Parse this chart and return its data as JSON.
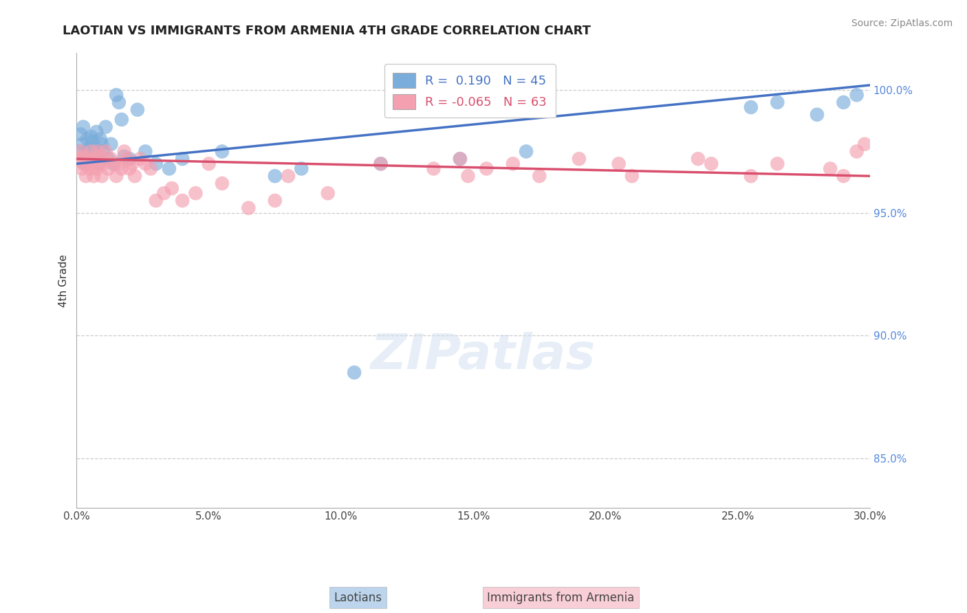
{
  "title": "LAOTIAN VS IMMIGRANTS FROM ARMENIA 4TH GRADE CORRELATION CHART",
  "source": "Source: ZipAtlas.com",
  "ylabel": "4th Grade",
  "xlim": [
    0.0,
    30.0
  ],
  "ylim": [
    83.0,
    101.5
  ],
  "xticks": [
    0.0,
    5.0,
    10.0,
    15.0,
    20.0,
    25.0,
    30.0
  ],
  "yticks": [
    85.0,
    90.0,
    95.0,
    100.0
  ],
  "blue_R": 0.19,
  "blue_N": 45,
  "pink_R": -0.065,
  "pink_N": 63,
  "blue_color": "#7aaddb",
  "pink_color": "#f4a0b0",
  "blue_line_color": "#4472c4",
  "pink_line_color": "#d94f6e",
  "blue_scatter_x": [
    0.1,
    0.15,
    0.2,
    0.25,
    0.3,
    0.35,
    0.4,
    0.45,
    0.5,
    0.55,
    0.6,
    0.65,
    0.7,
    0.75,
    0.8,
    0.85,
    0.9,
    0.95,
    1.0,
    1.1,
    1.2,
    1.3,
    1.4,
    1.5,
    1.6,
    1.7,
    1.8,
    2.0,
    2.3,
    2.6,
    3.0,
    3.5,
    4.0,
    5.5,
    7.5,
    8.5,
    10.5,
    11.5,
    14.5,
    17.0,
    25.5,
    26.5,
    28.0,
    29.0,
    29.5
  ],
  "blue_scatter_y": [
    97.5,
    98.2,
    97.8,
    98.5,
    97.0,
    97.3,
    98.0,
    97.6,
    97.4,
    98.1,
    97.9,
    97.2,
    97.6,
    98.3,
    97.5,
    97.0,
    98.0,
    97.8,
    97.5,
    98.5,
    97.2,
    97.8,
    97.0,
    99.8,
    99.5,
    98.8,
    97.3,
    97.2,
    99.2,
    97.5,
    97.0,
    96.8,
    97.2,
    97.5,
    96.5,
    96.8,
    88.5,
    97.0,
    97.2,
    97.5,
    99.3,
    99.5,
    99.0,
    99.5,
    99.8
  ],
  "pink_scatter_x": [
    0.1,
    0.15,
    0.2,
    0.25,
    0.3,
    0.35,
    0.4,
    0.45,
    0.5,
    0.55,
    0.6,
    0.65,
    0.7,
    0.75,
    0.8,
    0.85,
    0.9,
    0.95,
    1.0,
    1.1,
    1.2,
    1.3,
    1.4,
    1.5,
    1.6,
    1.7,
    1.8,
    1.9,
    2.0,
    2.1,
    2.2,
    2.4,
    2.6,
    2.8,
    3.0,
    3.3,
    3.6,
    4.0,
    4.5,
    5.0,
    5.5,
    6.5,
    7.5,
    8.0,
    9.5,
    11.5,
    13.5,
    14.5,
    14.8,
    15.5,
    16.5,
    17.5,
    19.0,
    20.5,
    21.0,
    23.5,
    24.0,
    25.5,
    26.5,
    28.5,
    29.0,
    29.5,
    29.8
  ],
  "pink_scatter_y": [
    97.2,
    97.5,
    96.8,
    97.0,
    97.3,
    96.5,
    97.0,
    97.2,
    96.8,
    97.5,
    97.0,
    96.5,
    97.2,
    96.8,
    97.5,
    97.0,
    97.3,
    96.5,
    97.0,
    97.5,
    96.8,
    97.2,
    97.0,
    96.5,
    97.0,
    96.8,
    97.5,
    97.2,
    96.8,
    97.0,
    96.5,
    97.2,
    97.0,
    96.8,
    95.5,
    95.8,
    96.0,
    95.5,
    95.8,
    97.0,
    96.2,
    95.2,
    95.5,
    96.5,
    95.8,
    97.0,
    96.8,
    97.2,
    96.5,
    96.8,
    97.0,
    96.5,
    97.2,
    97.0,
    96.5,
    97.2,
    97.0,
    96.5,
    97.0,
    96.8,
    96.5,
    97.5,
    97.8
  ]
}
